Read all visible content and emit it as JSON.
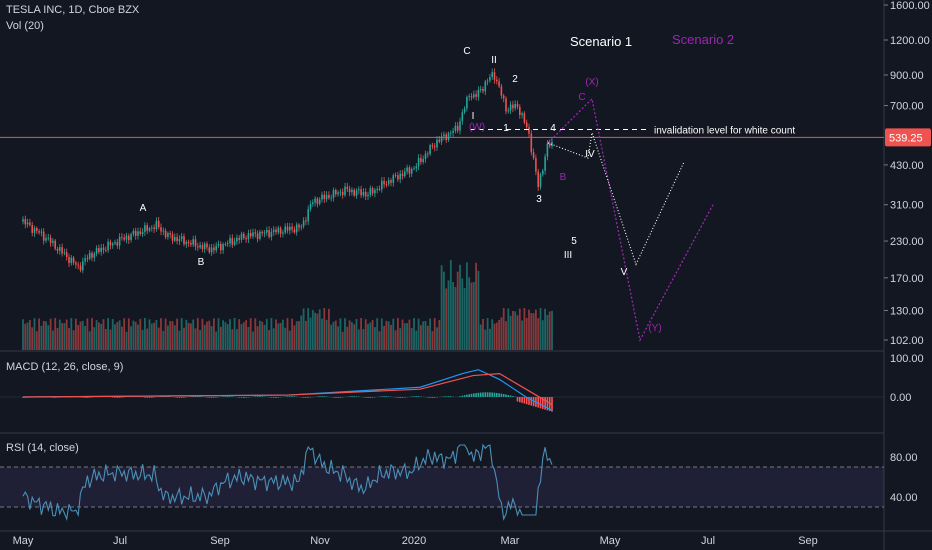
{
  "header": {
    "symbol_line": "TESLA INC, 1D, Cboe BZX",
    "volume_label": "Vol (20)"
  },
  "colors": {
    "up": "#26a69a",
    "down": "#ef5350",
    "scenario1": "#ffffff",
    "scenario2": "#9c27b0",
    "macd": "#2196f3",
    "signal": "#ef5350",
    "rsi": "#4a90b8",
    "price_badge": "#ef5350"
  },
  "chart_data": {
    "type": "line",
    "price_axis": {
      "scale": "log",
      "ticks": [
        "1600.00",
        "1200.00",
        "900.00",
        "700.00",
        "430.00",
        "310.00",
        "230.00",
        "170.00",
        "130.00",
        "102.00"
      ]
    },
    "last_price": "539.25",
    "x_ticks": [
      "May",
      "Jul",
      "Sep",
      "Nov",
      "2020",
      "Mar",
      "May",
      "Jul",
      "Sep"
    ],
    "price_path": [
      {
        "date": "2019-04-29",
        "close": 270
      },
      {
        "date": "2019-05-14",
        "close": 235
      },
      {
        "date": "2019-06-03",
        "close": 185
      },
      {
        "date": "2019-06-10",
        "close": 205
      },
      {
        "date": "2019-07-01",
        "close": 235
      },
      {
        "date": "2019-07-22",
        "close": 262
      },
      {
        "date": "2019-07-29",
        "close": 240
      },
      {
        "date": "2019-08-19",
        "close": 220
      },
      {
        "date": "2019-08-26",
        "close": 215
      },
      {
        "date": "2019-09-16",
        "close": 240
      },
      {
        "date": "2019-10-07",
        "close": 250
      },
      {
        "date": "2019-10-21",
        "close": 258
      },
      {
        "date": "2019-10-28",
        "close": 318
      },
      {
        "date": "2019-11-18",
        "close": 350
      },
      {
        "date": "2019-12-02",
        "close": 338
      },
      {
        "date": "2019-12-16",
        "close": 380
      },
      {
        "date": "2019-12-31",
        "close": 420
      },
      {
        "date": "2020-01-14",
        "close": 520
      },
      {
        "date": "2020-01-27",
        "close": 580
      },
      {
        "date": "2020-02-04",
        "close": 780
      },
      {
        "date": "2020-02-07",
        "close": 748
      },
      {
        "date": "2020-02-19",
        "close": 917
      },
      {
        "date": "2020-02-27",
        "close": 680
      },
      {
        "date": "2020-03-05",
        "close": 700
      },
      {
        "date": "2020-03-12",
        "close": 560
      },
      {
        "date": "2020-03-18",
        "close": 361
      },
      {
        "date": "2020-03-24",
        "close": 505
      },
      {
        "date": "2020-03-27",
        "close": 514
      }
    ],
    "volume": {
      "label": "Vol (20)"
    },
    "macd": {
      "label": "MACD (12, 26, close, 9)",
      "ticks": [
        "100.00",
        "0.00"
      ],
      "macd_line": [
        [
          0,
          0
        ],
        [
          0.5,
          5
        ],
        [
          0.75,
          25
        ],
        [
          0.83,
          60
        ],
        [
          0.86,
          70
        ],
        [
          0.9,
          45
        ],
        [
          0.95,
          0
        ],
        [
          1,
          -35
        ]
      ],
      "signal_line": [
        [
          0,
          0
        ],
        [
          0.5,
          5
        ],
        [
          0.75,
          20
        ],
        [
          0.85,
          55
        ],
        [
          0.9,
          60
        ],
        [
          0.95,
          20
        ],
        [
          1,
          -20
        ]
      ]
    },
    "rsi": {
      "label": "RSI (14, close)",
      "ticks": [
        "80.00",
        "40.00"
      ],
      "bands": [
        70,
        30
      ]
    },
    "annotations": {
      "white_wave": [
        "A",
        "B",
        "C",
        "I",
        "II",
        "III",
        "IV",
        "V",
        "1",
        "2",
        "3",
        "4",
        "5"
      ],
      "purple_wave": [
        "(W)",
        "(X)",
        "(Y)",
        "B",
        "C"
      ],
      "scenario1": "Scenario 1",
      "scenario2": "Scenario 2",
      "invalidation": "invalidation level for white count"
    }
  }
}
